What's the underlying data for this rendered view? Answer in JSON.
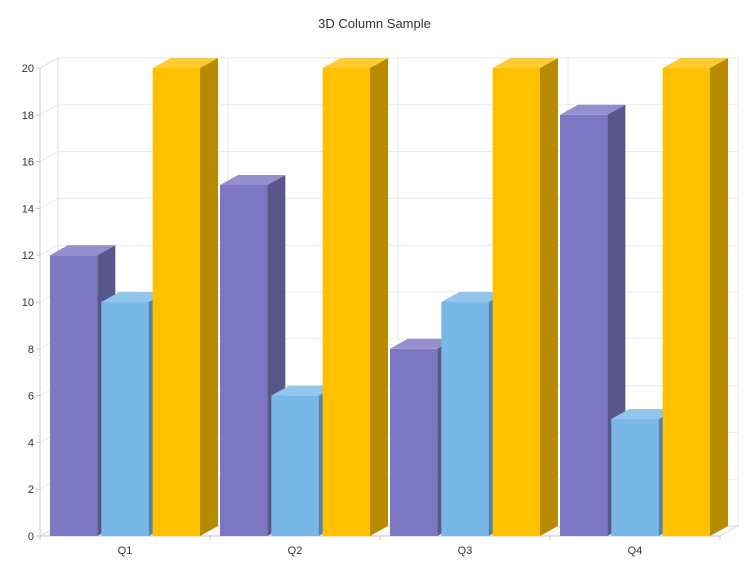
{
  "chart_data": {
    "type": "bar",
    "variant": "3d-column",
    "title": "3D Column Sample",
    "xlabel": "",
    "ylabel": "",
    "categories": [
      "Q1",
      "Q2",
      "Q3",
      "Q4"
    ],
    "series": [
      {
        "values": [
          12,
          15,
          8,
          18
        ],
        "color": "#7b77c3"
      },
      {
        "values": [
          10,
          6,
          10,
          5
        ],
        "color": "#79b8e6"
      },
      {
        "values": [
          20,
          20,
          20,
          20
        ],
        "color": "#ffc000"
      }
    ],
    "ylim": [
      0,
      20
    ],
    "yticks": [
      0,
      2,
      4,
      6,
      8,
      10,
      12,
      14,
      16,
      18,
      20
    ],
    "grid": true,
    "legend": "none"
  }
}
